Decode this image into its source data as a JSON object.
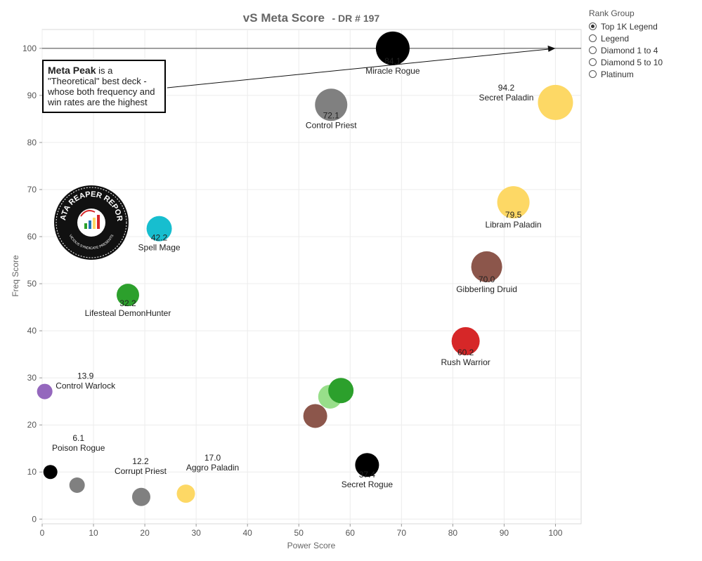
{
  "chart_data": {
    "type": "scatter",
    "title": "vS Meta Score",
    "subtitle": "- DR # 197",
    "xlabel": "Power Score",
    "ylabel": "Freq Score",
    "xlim": [
      0,
      105
    ],
    "ylim": [
      -1,
      104
    ],
    "xticks": [
      0,
      10,
      20,
      30,
      40,
      50,
      60,
      70,
      80,
      90,
      100
    ],
    "yticks": [
      0,
      10,
      20,
      30,
      40,
      50,
      60,
      70,
      80,
      90,
      100
    ],
    "grid": true,
    "meta_line_y": 100,
    "points": [
      {
        "name": "Miracle Rogue",
        "score": "84.1",
        "x": 68.3,
        "y": 100.0,
        "color": "#000000",
        "size": 24
      },
      {
        "name": "Secret Paladin",
        "score": "94.2",
        "x": 100.0,
        "y": 88.5,
        "color": "#FDD865",
        "size": 25
      },
      {
        "name": "Control Priest",
        "score": "72.1",
        "x": 56.3,
        "y": 88.0,
        "color": "#808080",
        "size": 23
      },
      {
        "name": "Libram Paladin",
        "score": "79.5",
        "x": 91.8,
        "y": 67.3,
        "color": "#FDD865",
        "size": 23
      },
      {
        "name": "Spell Mage",
        "score": "42.2",
        "x": 22.8,
        "y": 61.7,
        "color": "#17BECF",
        "size": 18
      },
      {
        "name": "Gibberling Druid",
        "score": "70.0",
        "x": 86.6,
        "y": 53.6,
        "color": "#8C564B",
        "size": 22
      },
      {
        "name": "Lifesteal DemonHunter",
        "score": "32.2",
        "x": 16.7,
        "y": 47.6,
        "color": "#2CA02C",
        "size": 16
      },
      {
        "name": "Rush Warrior",
        "score": "60.2",
        "x": 82.5,
        "y": 37.8,
        "color": "#D62728",
        "size": 20
      },
      {
        "name": "Control Warlock",
        "score": "13.9",
        "x": 0.5,
        "y": 27.1,
        "color": "#9467BD",
        "size": 11
      },
      {
        "name": "",
        "score": "",
        "x": 56.1,
        "y": 26.0,
        "color": "#98DF8A",
        "size": 17
      },
      {
        "name": "",
        "score": "",
        "x": 58.2,
        "y": 27.3,
        "color": "#2CA02C",
        "size": 18
      },
      {
        "name": "",
        "score": "",
        "x": 53.2,
        "y": 21.9,
        "color": "#8C564B",
        "size": 17
      },
      {
        "name": "Secret Rogue",
        "score": "37.4",
        "x": 63.3,
        "y": 11.5,
        "color": "#000000",
        "size": 17
      },
      {
        "name": "Poison Rogue",
        "score": "6.1",
        "x": 1.6,
        "y": 10.0,
        "color": "#000000",
        "size": 10
      },
      {
        "name": "",
        "score": "",
        "x": 6.8,
        "y": 7.2,
        "color": "#808080",
        "size": 11
      },
      {
        "name": "Corrupt Priest",
        "score": "12.2",
        "x": 19.3,
        "y": 4.7,
        "color": "#808080",
        "size": 13
      },
      {
        "name": "Aggro Paladin",
        "score": "17.0",
        "x": 28.0,
        "y": 5.4,
        "color": "#FDD865",
        "size": 13
      }
    ]
  },
  "legend": {
    "title": "Rank Group",
    "items": [
      {
        "label": "Top 1K Legend",
        "selected": true
      },
      {
        "label": "Legend",
        "selected": false
      },
      {
        "label": "Diamond 1 to 4",
        "selected": false
      },
      {
        "label": "Diamond 5 to 10",
        "selected": false
      },
      {
        "label": "Platinum",
        "selected": false
      }
    ]
  },
  "annotation": {
    "heading": "Meta Peak",
    "body": " is a \"Theoretical\" best deck - whose both frequency and win rates are the highest"
  },
  "logo": {
    "text_top": "DATA REAPER REPORT",
    "text_bottom": "VICIOUS SYNDICATE PRESENTS"
  }
}
